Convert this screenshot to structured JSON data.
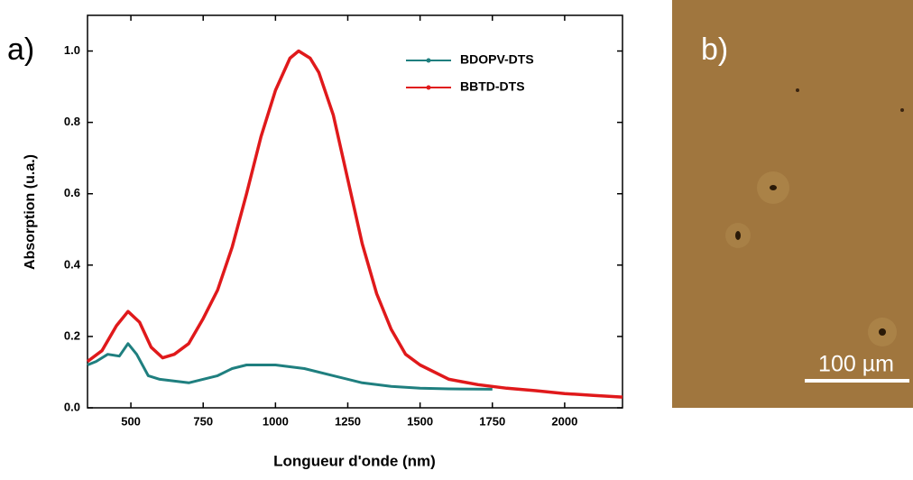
{
  "chart_data": {
    "type": "line",
    "panel_label": "a)",
    "x_label": "Longueur d'onde (nm)",
    "y_label": "Absorption (u.a.)",
    "xlim": [
      350,
      2200
    ],
    "ylim": [
      0,
      1.1
    ],
    "xticks": [
      500,
      750,
      1000,
      1250,
      1500,
      1750,
      2000
    ],
    "yticks": [
      {
        "value": 0,
        "label": "0.0"
      },
      {
        "value": 0.2,
        "label": "0.2"
      },
      {
        "value": 0.4,
        "label": "0.4"
      },
      {
        "value": 0.6,
        "label": "0.6"
      },
      {
        "value": 0.8,
        "label": "0.8"
      },
      {
        "value": 1,
        "label": "1.0"
      }
    ],
    "legend": "upper right",
    "series": [
      {
        "name": "BDOPV-DTS",
        "color": "#1f7f7f",
        "x": [
          350,
          380,
          420,
          460,
          490,
          520,
          560,
          600,
          700,
          800,
          850,
          900,
          1000,
          1100,
          1200,
          1300,
          1400,
          1500,
          1600,
          1750
        ],
        "values": [
          0.12,
          0.13,
          0.15,
          0.145,
          0.18,
          0.15,
          0.09,
          0.08,
          0.07,
          0.09,
          0.11,
          0.12,
          0.12,
          0.11,
          0.09,
          0.07,
          0.06,
          0.055,
          0.053,
          0.052
        ]
      },
      {
        "name": "BBTD-DTS",
        "color": "#e0191b",
        "x": [
          350,
          400,
          450,
          490,
          530,
          570,
          610,
          650,
          700,
          750,
          800,
          850,
          900,
          950,
          1000,
          1050,
          1080,
          1120,
          1150,
          1200,
          1250,
          1300,
          1350,
          1400,
          1450,
          1500,
          1600,
          1700,
          1800,
          1900,
          2000,
          2100,
          2200
        ],
        "values": [
          0.13,
          0.16,
          0.23,
          0.27,
          0.24,
          0.17,
          0.14,
          0.15,
          0.18,
          0.25,
          0.33,
          0.45,
          0.6,
          0.76,
          0.89,
          0.98,
          1.0,
          0.98,
          0.94,
          0.82,
          0.64,
          0.46,
          0.32,
          0.22,
          0.15,
          0.12,
          0.08,
          0.065,
          0.055,
          0.048,
          0.04,
          0.035,
          0.03
        ]
      }
    ]
  },
  "image_panel": {
    "label": "b)",
    "scale_bar": "100 µm"
  }
}
